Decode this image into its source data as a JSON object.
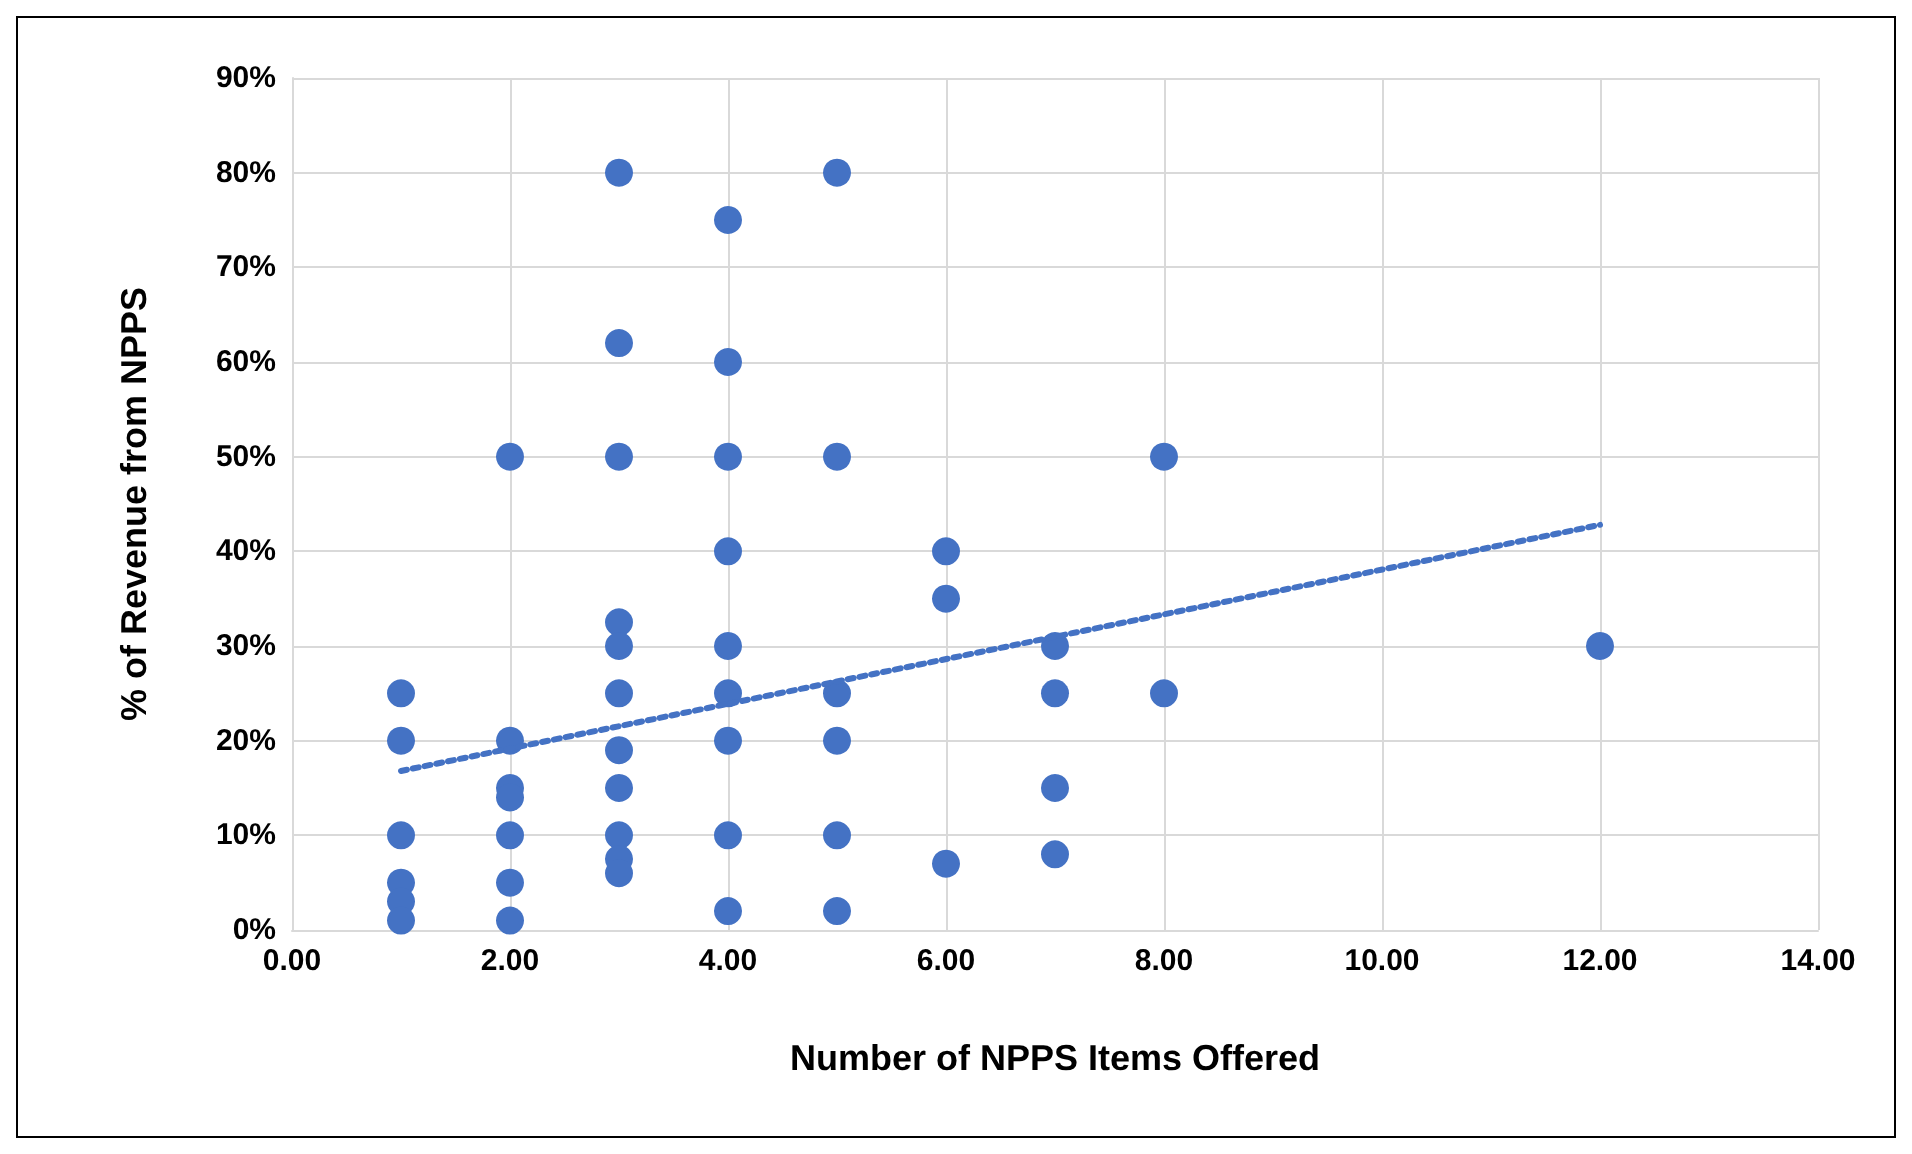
{
  "chart_data": {
    "type": "scatter",
    "xlabel": "Number of NPPS Items Offered",
    "ylabel": "% of Revenue from NPPS",
    "xlim": [
      0,
      14
    ],
    "xticks": [
      {
        "value": 0,
        "label": "0.00"
      },
      {
        "value": 2,
        "label": "2.00"
      },
      {
        "value": 4,
        "label": "4.00"
      },
      {
        "value": 6,
        "label": "6.00"
      },
      {
        "value": 8,
        "label": "8.00"
      },
      {
        "value": 10,
        "label": "10.00"
      },
      {
        "value": 12,
        "label": "12.00"
      },
      {
        "value": 14,
        "label": "14.00"
      }
    ],
    "ylim": [
      0,
      90
    ],
    "yticks": [
      {
        "value": 0,
        "label": "0%"
      },
      {
        "value": 10,
        "label": "10%"
      },
      {
        "value": 20,
        "label": "20%"
      },
      {
        "value": 30,
        "label": "30%"
      },
      {
        "value": 40,
        "label": "40%"
      },
      {
        "value": 50,
        "label": "50%"
      },
      {
        "value": 60,
        "label": "60%"
      },
      {
        "value": 70,
        "label": "70%"
      },
      {
        "value": 80,
        "label": "80%"
      },
      {
        "value": 90,
        "label": "90%"
      }
    ],
    "grid": true,
    "marker": "circle",
    "series": [
      {
        "color": "#4472c4",
        "x": [
          1,
          1,
          1,
          1,
          1,
          1,
          2,
          2,
          2,
          2,
          2,
          2,
          2,
          3,
          3,
          3,
          3,
          3,
          3,
          3,
          3,
          3,
          3,
          3,
          4,
          4,
          4,
          4,
          4,
          4,
          4,
          4,
          4,
          5,
          5,
          5,
          5,
          5,
          5,
          6,
          6,
          6,
          7,
          7,
          7,
          7,
          8,
          8,
          12
        ],
        "values": [
          25,
          20,
          10,
          5,
          3,
          1,
          50,
          20,
          15,
          14,
          10,
          5,
          1,
          80,
          62,
          50,
          32.5,
          30,
          25,
          19,
          15,
          10,
          7.5,
          6,
          75,
          60,
          50,
          40,
          30,
          25,
          20,
          10,
          2,
          80,
          50,
          25,
          20,
          10,
          2,
          40,
          35,
          7,
          30,
          25,
          15,
          8,
          50,
          25,
          30
        ]
      },
      {
        "type": "line",
        "color": "#4472c4",
        "line_style": "dotted",
        "marker": "none",
        "x": [
          1,
          12
        ],
        "values": [
          16.8,
          42.8
        ]
      }
    ]
  }
}
